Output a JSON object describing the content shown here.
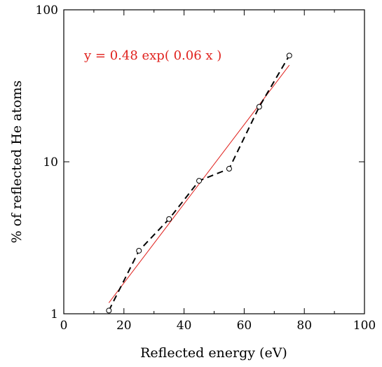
{
  "chart_data": {
    "type": "scatter",
    "title": "",
    "xlabel": "Reflected energy (eV)",
    "ylabel": "% of reflected He atoms",
    "xlim": [
      0,
      100
    ],
    "ylim": [
      1,
      100
    ],
    "yscale": "log",
    "grid": false,
    "x_ticks": [
      0,
      20,
      40,
      60,
      80,
      100
    ],
    "x_tick_labels": [
      "0",
      "20",
      "40",
      "60",
      "80",
      "100"
    ],
    "y_ticks": [
      1,
      10,
      100
    ],
    "y_tick_labels": [
      "1",
      "10",
      "100"
    ],
    "series": [
      {
        "name": "",
        "style": "black dashed line with open circle markers",
        "color": "#000000",
        "x": [
          15,
          25,
          35,
          45,
          55,
          65,
          75
        ],
        "y": [
          1.05,
          2.6,
          4.2,
          7.5,
          9.0,
          23,
          50
        ]
      }
    ],
    "fit": {
      "label": "y = 0.48 exp( 0.06 x )",
      "a": 0.48,
      "b": 0.06,
      "x_range": [
        15,
        75
      ],
      "color": "#e0211d"
    }
  }
}
